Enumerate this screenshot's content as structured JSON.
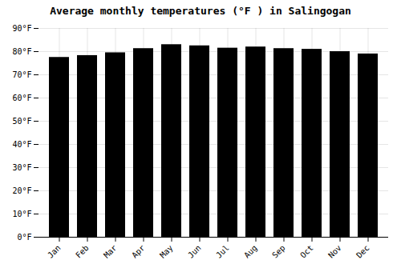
{
  "chart_data": {
    "type": "bar",
    "title": "Average monthly temperatures (°F ) in Salingogan",
    "categories": [
      "Jan",
      "Feb",
      "Mar",
      "Apr",
      "May",
      "Jun",
      "Jul",
      "Aug",
      "Sep",
      "Oct",
      "Nov",
      "Dec"
    ],
    "values": [
      77.5,
      78.3,
      79.5,
      81.3,
      83.0,
      82.5,
      81.5,
      82.0,
      81.3,
      81.0,
      80.0,
      79.0
    ],
    "ylim": [
      0,
      90
    ],
    "yticks": [
      {
        "value": 0,
        "label": "0°F"
      },
      {
        "value": 10,
        "label": "10°F"
      },
      {
        "value": 20,
        "label": "20°F"
      },
      {
        "value": 30,
        "label": "30°F"
      },
      {
        "value": 40,
        "label": "40°F"
      },
      {
        "value": 50,
        "label": "50°F"
      },
      {
        "value": 60,
        "label": "60°F"
      },
      {
        "value": 70,
        "label": "70°F"
      },
      {
        "value": 80,
        "label": "80°F"
      },
      {
        "value": 90,
        "label": "90°F"
      }
    ],
    "grid": true
  }
}
